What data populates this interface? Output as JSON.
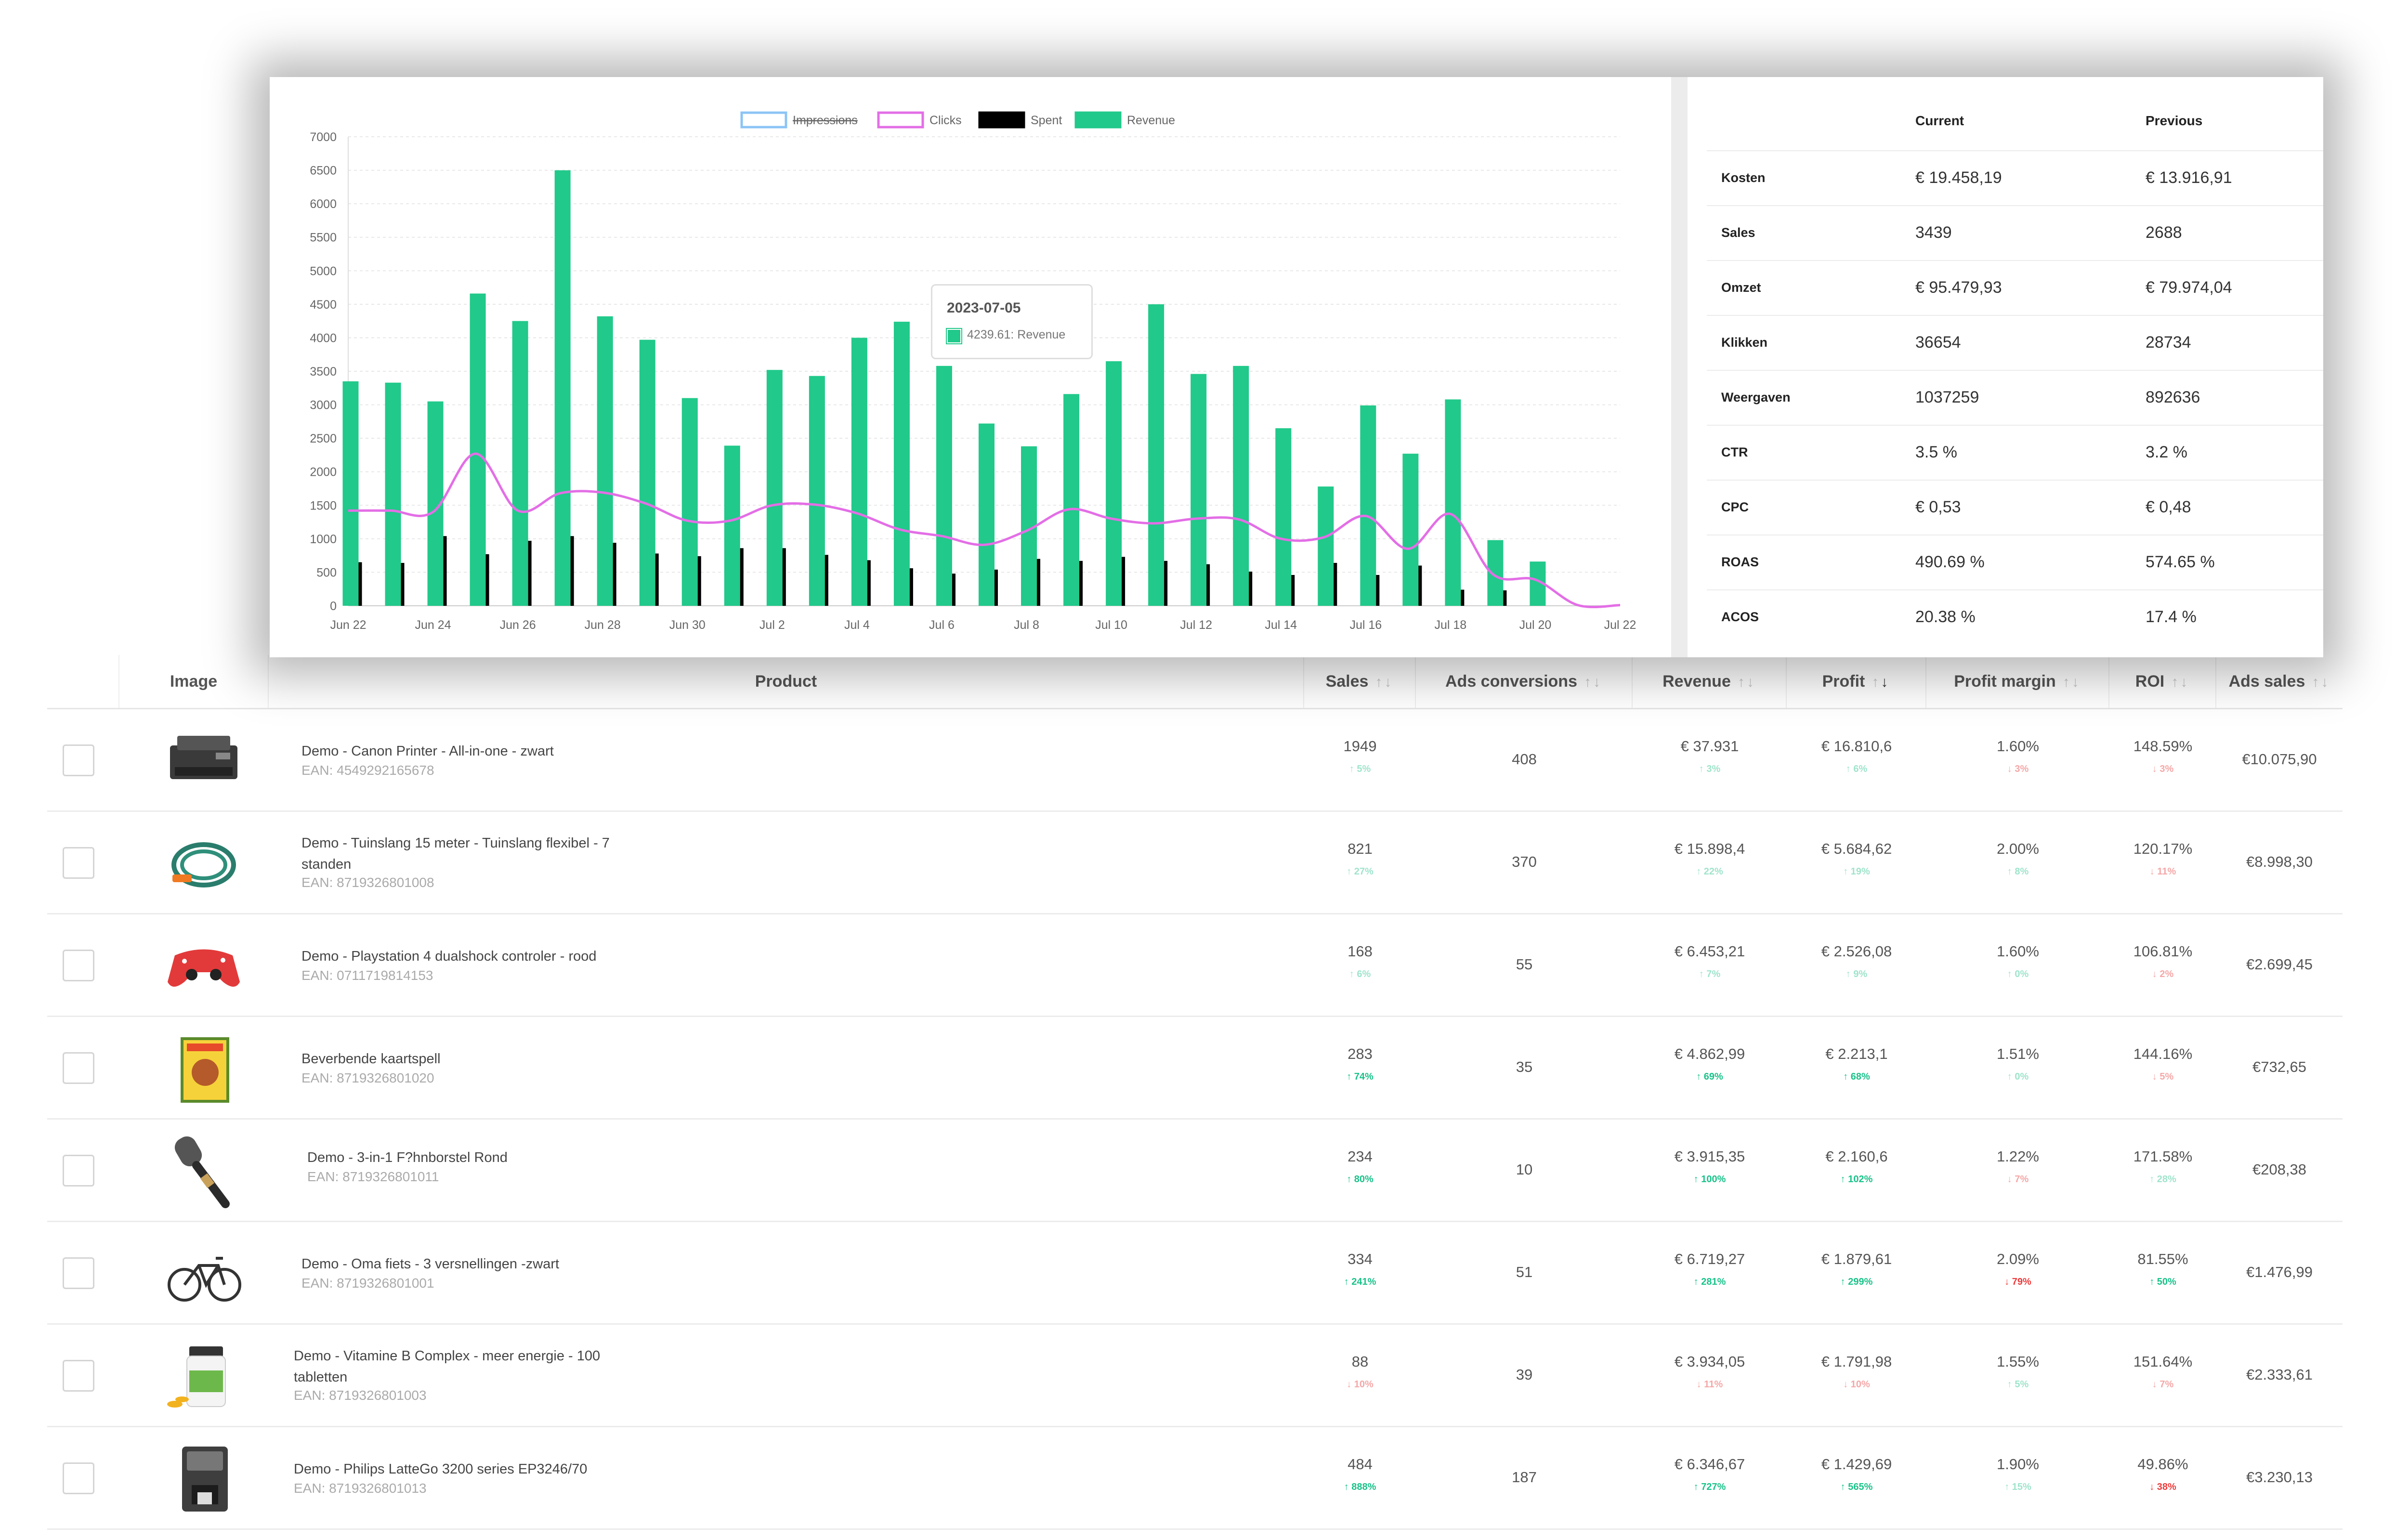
{
  "table": {
    "headers": {
      "image": "Image",
      "product": "Product",
      "sales": "Sales",
      "ads_conversions": "Ads conversions",
      "revenue": "Revenue",
      "profit": "Profit",
      "profit_margin": "Profit margin",
      "roi": "ROI",
      "ads_sales": "Ads sales"
    },
    "sort_up_icon": "arrow-up",
    "sort_down_icon": "arrow-down",
    "rows": [
      {
        "name": "Demo - Canon Printer - All-in-one - zwart",
        "ean": "EAN: 4549292165678",
        "thumb": "printer",
        "sales": "1949",
        "sales_delta": "↑ 5%",
        "sales_dir": "up-weak",
        "ads_conv": "408",
        "revenue": "€ 37.931",
        "revenue_delta": "↑ 3%",
        "revenue_dir": "up-weak",
        "profit": "€ 16.810,6",
        "profit_delta": "↑ 6%",
        "profit_dir": "up-weak",
        "margin": "1.60%",
        "margin_delta": "↓ 3%",
        "margin_dir": "dn-weak",
        "roi": "148.59%",
        "roi_delta": "↓ 3%",
        "roi_dir": "dn-weak",
        "ads_sales": "€10.075,90"
      },
      {
        "name": "Demo - Tuinslang 15 meter - Tuinslang flexibel - 7 standen",
        "ean": "EAN: 8719326801008",
        "thumb": "hose",
        "sales": "821",
        "sales_delta": "↑ 27%",
        "sales_dir": "up-weak",
        "ads_conv": "370",
        "revenue": "€ 15.898,4",
        "revenue_delta": "↑ 22%",
        "revenue_dir": "up-weak",
        "profit": "€ 5.684,62",
        "profit_delta": "↑ 19%",
        "profit_dir": "up-weak",
        "margin": "2.00%",
        "margin_delta": "↑ 8%",
        "margin_dir": "up-weak",
        "roi": "120.17%",
        "roi_delta": "↓ 11%",
        "roi_dir": "dn-weak",
        "ads_sales": "€8.998,30"
      },
      {
        "name": "Demo - Playstation 4 dualshock controler - rood",
        "ean": "EAN: 0711719814153",
        "thumb": "controller",
        "sales": "168",
        "sales_delta": "↑ 6%",
        "sales_dir": "up-weak",
        "ads_conv": "55",
        "revenue": "€ 6.453,21",
        "revenue_delta": "↑ 7%",
        "revenue_dir": "up-weak",
        "profit": "€ 2.526,08",
        "profit_delta": "↑ 9%",
        "profit_dir": "up-weak",
        "margin": "1.60%",
        "margin_delta": "↑ 0%",
        "margin_dir": "up-weak",
        "roi": "106.81%",
        "roi_delta": "↓ 2%",
        "roi_dir": "dn-weak",
        "ads_sales": "€2.699,45"
      },
      {
        "name": "Beverbende kaartspell",
        "ean": "EAN: 8719326801020",
        "thumb": "cardgame",
        "sales": "283",
        "sales_delta": "↑ 74%",
        "sales_dir": "up-strong",
        "ads_conv": "35",
        "revenue": "€ 4.862,99",
        "revenue_delta": "↑ 69%",
        "revenue_dir": "up-strong",
        "profit": "€ 2.213,1",
        "profit_delta": "↑ 68%",
        "profit_dir": "up-strong",
        "margin": "1.51%",
        "margin_delta": "↑ 0%",
        "margin_dir": "up-weak",
        "roi": "144.16%",
        "roi_delta": "↓ 5%",
        "roi_dir": "dn-weak",
        "ads_sales": "€732,65"
      },
      {
        "name": "Demo - 3-in-1 F?hnborstel Rond",
        "ean": "EAN: 8719326801011",
        "thumb": "brush",
        "sales": "234",
        "sales_delta": "↑ 80%",
        "sales_dir": "up-strong",
        "ads_conv": "10",
        "revenue": "€ 3.915,35",
        "revenue_delta": "↑ 100%",
        "revenue_dir": "up-strong",
        "profit": "€ 2.160,6",
        "profit_delta": "↑ 102%",
        "profit_dir": "up-strong",
        "margin": "1.22%",
        "margin_delta": "↓ 7%",
        "margin_dir": "dn-weak",
        "roi": "171.58%",
        "roi_delta": "↑ 28%",
        "roi_dir": "up-weak",
        "ads_sales": "€208,38"
      },
      {
        "name": "Demo - Oma fiets - 3 versnellingen -zwart",
        "ean": "EAN: 8719326801001",
        "thumb": "bicycle",
        "sales": "334",
        "sales_delta": "↑ 241%",
        "sales_dir": "up-strong",
        "ads_conv": "51",
        "revenue": "€ 6.719,27",
        "revenue_delta": "↑ 281%",
        "revenue_dir": "up-strong",
        "profit": "€ 1.879,61",
        "profit_delta": "↑ 299%",
        "profit_dir": "up-strong",
        "margin": "2.09%",
        "margin_delta": "↓ 79%",
        "margin_dir": "dn-strong",
        "roi": "81.55%",
        "roi_delta": "↑ 50%",
        "roi_dir": "up-strong",
        "ads_sales": "€1.476,99"
      },
      {
        "name": "Demo - Vitamine B Complex - meer energie - 100 tabletten",
        "ean": "EAN: 8719326801003",
        "thumb": "vitamins",
        "sales": "88",
        "sales_delta": "↓ 10%",
        "sales_dir": "dn-weak",
        "ads_conv": "39",
        "revenue": "€ 3.934,05",
        "revenue_delta": "↓ 11%",
        "revenue_dir": "dn-weak",
        "profit": "€ 1.791,98",
        "profit_delta": "↓ 10%",
        "profit_dir": "dn-weak",
        "margin": "1.55%",
        "margin_delta": "↑ 5%",
        "margin_dir": "up-weak",
        "roi": "151.64%",
        "roi_delta": "↓ 7%",
        "roi_dir": "dn-weak",
        "ads_sales": "€2.333,61"
      },
      {
        "name": "Demo - Philips LatteGo 3200 series EP3246/70",
        "ean": "EAN: 8719326801013",
        "thumb": "coffee",
        "sales": "484",
        "sales_delta": "↑ 888%",
        "sales_dir": "up-strong",
        "ads_conv": "187",
        "revenue": "€ 6.346,67",
        "revenue_delta": "↑ 727%",
        "revenue_dir": "up-strong",
        "profit": "€ 1.429,69",
        "profit_delta": "↑ 565%",
        "profit_dir": "up-strong",
        "margin": "1.90%",
        "margin_delta": "↑ 15%",
        "margin_dir": "up-weak",
        "roi": "49.86%",
        "roi_delta": "↓ 38%",
        "roi_dir": "dn-strong",
        "ads_sales": "€3.230,13"
      }
    ]
  },
  "tooltip": {
    "date": "2023-07-05",
    "value": "4239.61: Revenue"
  },
  "stats": {
    "col_current": "Current",
    "col_previous": "Previous",
    "rows": [
      {
        "label": "Kosten",
        "current": "€ 19.458,19",
        "previous": "€ 13.916,91"
      },
      {
        "label": "Sales",
        "current": "3439",
        "previous": "2688"
      },
      {
        "label": "Omzet",
        "current": "€ 95.479,93",
        "previous": "€ 79.974,04"
      },
      {
        "label": "Klikken",
        "current": "36654",
        "previous": "28734"
      },
      {
        "label": "Weergaven",
        "current": "1037259",
        "previous": "892636"
      },
      {
        "label": "CTR",
        "current": "3.5 %",
        "previous": "3.2 %"
      },
      {
        "label": "CPC",
        "current": "€ 0,53",
        "previous": "€ 0,48"
      },
      {
        "label": "ROAS",
        "current": "490.69 %",
        "previous": "574.65 %"
      },
      {
        "label": "ACOS",
        "current": "20.38 %",
        "previous": "17.4 %"
      }
    ]
  },
  "colors": {
    "revenue": "#21c98a",
    "spent": "#000000",
    "clicks": "#e36ee6",
    "impressions": "#8cc4f5",
    "up_strong": "#18c28a",
    "down_strong": "#ee3b3b"
  },
  "chart_data": {
    "type": "bar",
    "ylim": [
      0,
      7000
    ],
    "yticks": [
      "0",
      "500",
      "1000",
      "1500",
      "2000",
      "2500",
      "3000",
      "3500",
      "4000",
      "4500",
      "5000",
      "5500",
      "6000",
      "6500",
      "7000"
    ],
    "xticks": [
      "Jun 22",
      "Jun 24",
      "Jun 26",
      "Jun 28",
      "Jun 30",
      "Jul 2",
      "Jul 4",
      "Jul 6",
      "Jul 8",
      "Jul 10",
      "Jul 12",
      "Jul 14",
      "Jul 16",
      "Jul 18",
      "Jul 20",
      "Jul 22"
    ],
    "x": [
      "2023-06-22",
      "2023-06-23",
      "2023-06-24",
      "2023-06-25",
      "2023-06-26",
      "2023-06-27",
      "2023-06-28",
      "2023-06-29",
      "2023-06-30",
      "2023-07-01",
      "2023-07-02",
      "2023-07-03",
      "2023-07-04",
      "2023-07-05",
      "2023-07-06",
      "2023-07-07",
      "2023-07-08",
      "2023-07-09",
      "2023-07-10",
      "2023-07-11",
      "2023-07-12",
      "2023-07-13",
      "2023-07-14",
      "2023-07-15",
      "2023-07-16",
      "2023-07-17",
      "2023-07-18",
      "2023-07-19",
      "2023-07-20",
      "2023-07-21",
      "2023-07-22"
    ],
    "legend": [
      {
        "name": "Impressions",
        "style": "outline",
        "hidden": true
      },
      {
        "name": "Clicks",
        "style": "outline"
      },
      {
        "name": "Spent",
        "style": "fill"
      },
      {
        "name": "Revenue",
        "style": "fill"
      }
    ],
    "series": [
      {
        "name": "Revenue",
        "type": "bar",
        "values": [
          3350,
          3330,
          3050,
          4660,
          4250,
          6500,
          4320,
          3970,
          3100,
          2390,
          3520,
          3430,
          4000,
          4239.61,
          3580,
          2720,
          2380,
          3160,
          3650,
          4500,
          3460,
          3580,
          2650,
          1780,
          2990,
          2270,
          3080,
          980,
          660,
          0,
          0
        ]
      },
      {
        "name": "Spent",
        "type": "bar",
        "values": [
          650,
          640,
          1040,
          770,
          970,
          1040,
          940,
          780,
          740,
          860,
          860,
          760,
          680,
          560,
          480,
          540,
          700,
          670,
          730,
          670,
          620,
          510,
          460,
          640,
          460,
          600,
          240,
          230,
          0,
          0,
          0
        ]
      },
      {
        "name": "Clicks",
        "type": "line",
        "values": [
          1420,
          1420,
          1400,
          2270,
          1420,
          1680,
          1690,
          1530,
          1270,
          1270,
          1500,
          1510,
          1380,
          1140,
          1040,
          910,
          1120,
          1440,
          1300,
          1230,
          1300,
          1290,
          1000,
          1020,
          1340,
          850,
          1370,
          470,
          390,
          10,
          10
        ]
      }
    ],
    "grid": true,
    "legend_position": "top"
  }
}
